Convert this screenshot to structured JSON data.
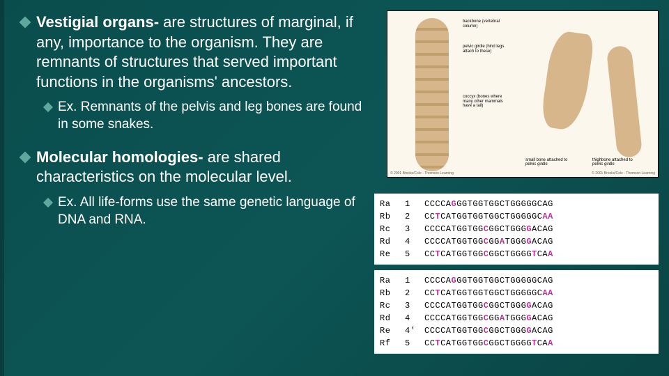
{
  "slide": {
    "background_gradient": [
      "#0a4d4d",
      "#0d5555",
      "#0a4545"
    ],
    "bullets": [
      {
        "bold": "Vestigial organs-",
        "rest": " are structures of marginal, if any, importance to the organism. They are remnants of structures that served important functions in the organisms' ancestors.",
        "sub": {
          "bold": "Ex.",
          "rest": " Remnants of the pelvis and leg bones are found in some snakes."
        }
      },
      {
        "bold": "Molecular homologies-",
        "rest": " are shared characteristics on the molecular level.",
        "sub": {
          "bold": "Ex.",
          "rest": " All life-forms use the same genetic language of DNA and RNA."
        }
      }
    ]
  },
  "anatomy": {
    "background": "#fcf7ec",
    "bone_color": "#d6b68a",
    "labels": {
      "l1": "backbone (vertebral column)",
      "l2": "pelvic girdle (hind legs attach to these)",
      "l3": "coccyx (bones where many other mammals have a tail)",
      "l4": "small bone attached to pelvic girdle",
      "l5": "thighbone attached to pelvic girdle"
    },
    "copyright_left": "© 2001 Brooks/Cole - Thomson Learning",
    "copyright_right": "© 2001 Brooks/Cole - Thomson Learning"
  },
  "sequences": {
    "block1": [
      {
        "label": "Ra",
        "num": "1",
        "seq": "CCCCAGGGTGGTGGCTGGGGGCAG",
        "mut": [
          5
        ]
      },
      {
        "label": "Rb",
        "num": "2",
        "seq": "CCTCATGGTGGTGGCTGGGGGCAA",
        "mut": [
          2,
          22,
          23
        ]
      },
      {
        "label": "Rc",
        "num": "3",
        "seq": "CCCCATGGTGGCGGCTGGGGACAG",
        "mut": [
          11,
          19
        ]
      },
      {
        "label": "Rd",
        "num": "4",
        "seq": "CCCCATGGTGGCGGATGGGGACAG",
        "mut": [
          11,
          14,
          19
        ]
      },
      {
        "label": "Re",
        "num": "5",
        "seq": "CCTCATGGTGGCGGCTGGGGTCAA",
        "mut": [
          2,
          11,
          20,
          23
        ]
      }
    ],
    "block2": [
      {
        "label": "Ra",
        "num": "1",
        "seq": "CCCCAGGGTGGTGGCTGGGGGCAG",
        "mut": [
          5
        ]
      },
      {
        "label": "Rb",
        "num": "2",
        "seq": "CCTCATGGTGGTGGCTGGGGGCAA",
        "mut": [
          2,
          22,
          23
        ]
      },
      {
        "label": "Rc",
        "num": "3",
        "seq": "CCCCATGGTGGCGGCTGGGGACAG",
        "mut": [
          11,
          19
        ]
      },
      {
        "label": "Rd",
        "num": "4",
        "seq": "CCCCATGGTGGCGGATGGGGACAG",
        "mut": [
          11,
          14,
          19
        ]
      },
      {
        "label": "Re",
        "num": "4'",
        "seq": "CCCCATGGTGGCGGCTGGGGACAG",
        "mut": [
          11,
          19
        ]
      },
      {
        "label": "Rf",
        "num": "5",
        "seq": "CCTCATGGTGGCGGCTGGGGTCAA",
        "mut": [
          2,
          11,
          20,
          23
        ]
      }
    ],
    "mutation_color": "#c030a0"
  }
}
